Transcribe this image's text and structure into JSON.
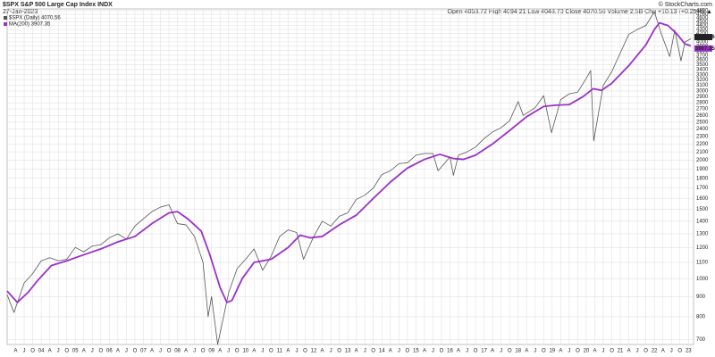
{
  "chart_data": {
    "type": "line",
    "title": "$SPX S&P 500 Large Cap Index INDX",
    "subtitle": "27-Jan-2023",
    "source": "© StockCharts.com",
    "quote": "Open 4053.72 High 4094.21 Low 4048.70 Close 4070.56 Volume 2.5B Chg +10.13 (+0.25%) ▲",
    "log_scale": true,
    "grid": true,
    "legend": "upper left",
    "xlim": [
      2003.0,
      2023.15
    ],
    "ylim": [
      680,
      4850
    ],
    "yticks": [
      700,
      800,
      900,
      1000,
      1100,
      1200,
      1300,
      1400,
      1500,
      1600,
      1700,
      1800,
      1900,
      2000,
      2100,
      2200,
      2300,
      2400,
      2500,
      2600,
      2700,
      2800,
      2900,
      3000,
      3100,
      3200,
      3300,
      3400,
      3500,
      3600,
      3700,
      3800,
      3900,
      4000,
      4100,
      4200,
      4300,
      4400,
      4500,
      4600,
      4700,
      4800
    ],
    "xticks": [
      {
        "value": 2003.25,
        "label": "A"
      },
      {
        "value": 2003.5,
        "label": "J"
      },
      {
        "value": 2003.75,
        "label": "O"
      },
      {
        "value": 2004,
        "label": "04"
      },
      {
        "value": 2004.25,
        "label": "A"
      },
      {
        "value": 2004.5,
        "label": "J"
      },
      {
        "value": 2004.75,
        "label": "O"
      },
      {
        "value": 2005,
        "label": "05"
      },
      {
        "value": 2005.25,
        "label": "A"
      },
      {
        "value": 2005.5,
        "label": "J"
      },
      {
        "value": 2005.75,
        "label": "O"
      },
      {
        "value": 2006,
        "label": "06"
      },
      {
        "value": 2006.25,
        "label": "A"
      },
      {
        "value": 2006.5,
        "label": "J"
      },
      {
        "value": 2006.75,
        "label": "O"
      },
      {
        "value": 2007,
        "label": "07"
      },
      {
        "value": 2007.25,
        "label": "A"
      },
      {
        "value": 2007.5,
        "label": "J"
      },
      {
        "value": 2007.75,
        "label": "O"
      },
      {
        "value": 2008,
        "label": "08"
      },
      {
        "value": 2008.25,
        "label": "A"
      },
      {
        "value": 2008.5,
        "label": "J"
      },
      {
        "value": 2008.75,
        "label": "O"
      },
      {
        "value": 2009,
        "label": "09"
      },
      {
        "value": 2009.25,
        "label": "A"
      },
      {
        "value": 2009.5,
        "label": "J"
      },
      {
        "value": 2009.75,
        "label": "O"
      },
      {
        "value": 2010,
        "label": "10"
      },
      {
        "value": 2010.25,
        "label": "A"
      },
      {
        "value": 2010.5,
        "label": "J"
      },
      {
        "value": 2010.75,
        "label": "O"
      },
      {
        "value": 2011,
        "label": "11"
      },
      {
        "value": 2011.25,
        "label": "A"
      },
      {
        "value": 2011.5,
        "label": "J"
      },
      {
        "value": 2011.75,
        "label": "O"
      },
      {
        "value": 2012,
        "label": "12"
      },
      {
        "value": 2012.25,
        "label": "A"
      },
      {
        "value": 2012.5,
        "label": "J"
      },
      {
        "value": 2012.75,
        "label": "O"
      },
      {
        "value": 2013,
        "label": "13"
      },
      {
        "value": 2013.25,
        "label": "A"
      },
      {
        "value": 2013.5,
        "label": "J"
      },
      {
        "value": 2013.75,
        "label": "O"
      },
      {
        "value": 2014,
        "label": "14"
      },
      {
        "value": 2014.25,
        "label": "A"
      },
      {
        "value": 2014.5,
        "label": "J"
      },
      {
        "value": 2014.75,
        "label": "O"
      },
      {
        "value": 2015,
        "label": "15"
      },
      {
        "value": 2015.25,
        "label": "A"
      },
      {
        "value": 2015.5,
        "label": "J"
      },
      {
        "value": 2015.75,
        "label": "O"
      },
      {
        "value": 2016,
        "label": "16"
      },
      {
        "value": 2016.25,
        "label": "A"
      },
      {
        "value": 2016.5,
        "label": "J"
      },
      {
        "value": 2016.75,
        "label": "O"
      },
      {
        "value": 2017,
        "label": "17"
      },
      {
        "value": 2017.25,
        "label": "A"
      },
      {
        "value": 2017.5,
        "label": "J"
      },
      {
        "value": 2017.75,
        "label": "O"
      },
      {
        "value": 2018,
        "label": "18"
      },
      {
        "value": 2018.25,
        "label": "A"
      },
      {
        "value": 2018.5,
        "label": "J"
      },
      {
        "value": 2018.75,
        "label": "O"
      },
      {
        "value": 2019,
        "label": "19"
      },
      {
        "value": 2019.25,
        "label": "A"
      },
      {
        "value": 2019.5,
        "label": "J"
      },
      {
        "value": 2019.75,
        "label": "O"
      },
      {
        "value": 2020,
        "label": "20"
      },
      {
        "value": 2020.25,
        "label": "A"
      },
      {
        "value": 2020.5,
        "label": "J"
      },
      {
        "value": 2020.75,
        "label": "O"
      },
      {
        "value": 2021,
        "label": "21"
      },
      {
        "value": 2021.25,
        "label": "A"
      },
      {
        "value": 2021.5,
        "label": "J"
      },
      {
        "value": 2021.75,
        "label": "O"
      },
      {
        "value": 2022,
        "label": "22"
      },
      {
        "value": 2022.25,
        "label": "A"
      },
      {
        "value": 2022.5,
        "label": "J"
      },
      {
        "value": 2022.75,
        "label": "O"
      },
      {
        "value": 2023,
        "label": "23"
      }
    ],
    "series": [
      {
        "name": "$SPX (Daily) 4070.56",
        "color": "#555555",
        "x": [
          2003.0,
          2003.2,
          2003.5,
          2003.75,
          2004.0,
          2004.25,
          2004.5,
          2004.75,
          2005.0,
          2005.25,
          2005.5,
          2005.75,
          2006.0,
          2006.25,
          2006.5,
          2006.75,
          2007.0,
          2007.25,
          2007.5,
          2007.75,
          2008.0,
          2008.25,
          2008.5,
          2008.75,
          2008.9,
          2009.0,
          2009.18,
          2009.5,
          2009.75,
          2010.0,
          2010.25,
          2010.5,
          2010.75,
          2011.0,
          2011.25,
          2011.5,
          2011.7,
          2012.0,
          2012.25,
          2012.5,
          2012.75,
          2013.0,
          2013.25,
          2013.5,
          2013.75,
          2014.0,
          2014.25,
          2014.5,
          2014.75,
          2015.0,
          2015.25,
          2015.5,
          2015.65,
          2016.0,
          2016.1,
          2016.25,
          2016.5,
          2016.75,
          2017.0,
          2017.25,
          2017.5,
          2017.75,
          2018.0,
          2018.15,
          2018.5,
          2018.75,
          2018.98,
          2019.25,
          2019.5,
          2019.75,
          2020.0,
          2020.13,
          2020.22,
          2020.5,
          2020.75,
          2021.0,
          2021.25,
          2021.5,
          2021.75,
          2022.0,
          2022.2,
          2022.45,
          2022.6,
          2022.78,
          2022.9,
          2023.07
        ],
        "values": [
          910,
          820,
          975,
          1030,
          1110,
          1130,
          1110,
          1120,
          1200,
          1170,
          1210,
          1220,
          1270,
          1300,
          1260,
          1360,
          1420,
          1480,
          1520,
          1540,
          1380,
          1370,
          1280,
          1100,
          800,
          900,
          680,
          920,
          1060,
          1120,
          1190,
          1050,
          1140,
          1280,
          1330,
          1310,
          1120,
          1280,
          1400,
          1360,
          1440,
          1470,
          1590,
          1630,
          1700,
          1840,
          1880,
          1960,
          1970,
          2060,
          2080,
          2080,
          1880,
          2040,
          1830,
          2060,
          2100,
          2160,
          2270,
          2360,
          2420,
          2520,
          2820,
          2600,
          2720,
          2920,
          2350,
          2850,
          2950,
          2980,
          3230,
          3380,
          2240,
          3100,
          3360,
          3750,
          4180,
          4300,
          4400,
          4770,
          4200,
          3670,
          4280,
          3580,
          4000,
          4070.56
        ]
      },
      {
        "name": "MA(200) 3907.35",
        "color": "#9b30c8",
        "x": [
          2003.0,
          2003.3,
          2003.6,
          2003.9,
          2004.3,
          2004.75,
          2005.25,
          2005.75,
          2006.25,
          2006.75,
          2007.25,
          2007.75,
          2008.0,
          2008.3,
          2008.7,
          2008.95,
          2009.25,
          2009.45,
          2009.6,
          2009.9,
          2010.25,
          2010.75,
          2011.25,
          2011.6,
          2011.9,
          2012.25,
          2012.75,
          2013.25,
          2013.75,
          2014.25,
          2014.75,
          2015.25,
          2015.7,
          2016.1,
          2016.4,
          2016.75,
          2017.25,
          2017.75,
          2018.25,
          2018.75,
          2019.1,
          2019.5,
          2019.9,
          2020.2,
          2020.45,
          2020.75,
          2021.25,
          2021.75,
          2022.0,
          2022.15,
          2022.4,
          2022.65,
          2022.9,
          2023.07
        ],
        "values": [
          930,
          870,
          920,
          990,
          1080,
          1110,
          1150,
          1190,
          1240,
          1280,
          1380,
          1470,
          1480,
          1420,
          1320,
          1150,
          950,
          870,
          880,
          1000,
          1100,
          1120,
          1200,
          1290,
          1270,
          1280,
          1370,
          1450,
          1600,
          1760,
          1910,
          2010,
          2070,
          2020,
          2010,
          2060,
          2200,
          2380,
          2580,
          2740,
          2760,
          2770,
          2900,
          3040,
          3010,
          3140,
          3480,
          3930,
          4300,
          4470,
          4400,
          4200,
          3950,
          3907.35
        ]
      }
    ]
  }
}
